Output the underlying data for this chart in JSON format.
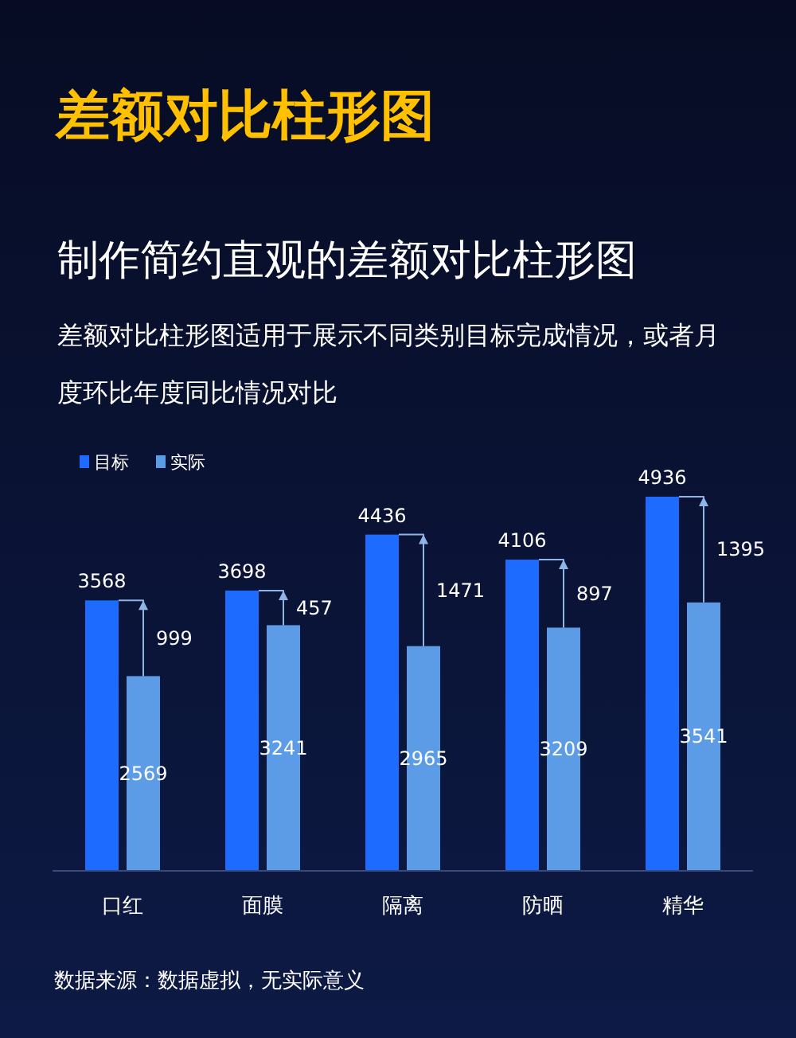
{
  "chart_data": {
    "type": "bar",
    "title": "差额对比柱形图",
    "subtitle": "制作简约直观的差额对比柱形图",
    "categories": [
      "口红",
      "面膜",
      "隔离",
      "防晒",
      "精华"
    ],
    "series": [
      {
        "name": "目标",
        "color": "#1e6bff",
        "values": [
          3568,
          3698,
          4436,
          4106,
          4936
        ],
        "value_labels": [
          "3568",
          "3698",
          "4436",
          "4106",
          "4936"
        ]
      },
      {
        "name": "实际",
        "color": "#5c9ce6",
        "values": [
          2569,
          3241,
          2965,
          3209,
          3541
        ],
        "value_labels": [
          "2569",
          "3241",
          "2965",
          "3209",
          "3541"
        ]
      }
    ],
    "legend": "top left",
    "grid": false,
    "annotations": [
      "差额对比柱形图适用于展示不同类别目标完成情况，或者月度环比年度同比情况对比",
      "数据来源：数据虚拟，无实际意义",
      "999",
      "457",
      "1471",
      "897",
      "1395"
    ]
  }
}
